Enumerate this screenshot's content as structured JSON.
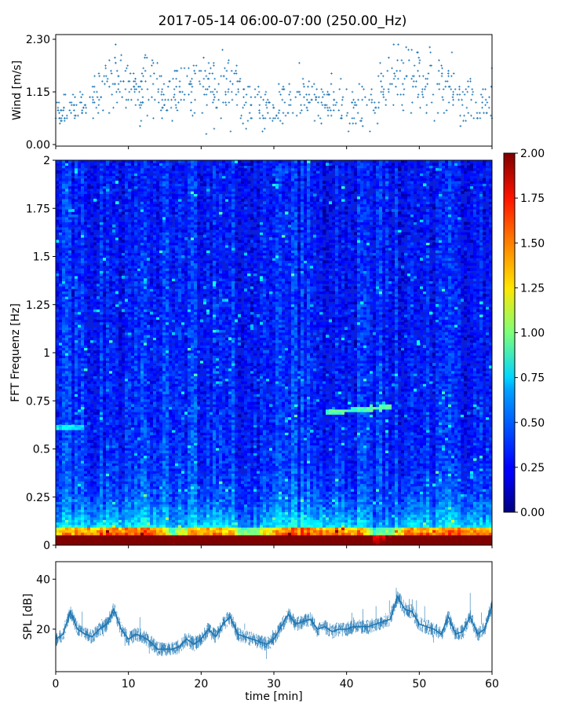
{
  "title": "2017-05-14 06:00-07:00 (250.00_Hz)",
  "chart_data": [
    {
      "name": "wind",
      "type": "scatter",
      "ylabel": "Wind [m/s]",
      "xlim": [
        0,
        60
      ],
      "ylim": [
        0,
        2.3
      ],
      "yticks": [
        "0.00",
        "1.15",
        "2.30"
      ],
      "marker": "plus",
      "color": "#1f77b4",
      "envelope": {
        "x": [
          0,
          2,
          4,
          6,
          8,
          10,
          12,
          14,
          16,
          18,
          20,
          22,
          24,
          26,
          28,
          30,
          32,
          34,
          36,
          38,
          40,
          42,
          44,
          46,
          48,
          50,
          52,
          54,
          56,
          58,
          60
        ],
        "center": [
          0.6,
          0.8,
          0.9,
          1.2,
          1.4,
          1.2,
          1.3,
          1.1,
          1.0,
          1.2,
          1.3,
          1.2,
          1.2,
          0.9,
          0.9,
          0.8,
          1.0,
          1.1,
          0.9,
          1.0,
          0.9,
          0.8,
          1.0,
          1.4,
          1.5,
          1.4,
          1.3,
          1.3,
          1.1,
          0.8,
          1.0
        ],
        "spread": [
          0.3,
          0.3,
          0.3,
          0.5,
          0.6,
          0.5,
          0.6,
          0.5,
          0.4,
          0.5,
          0.6,
          0.5,
          0.6,
          0.4,
          0.4,
          0.4,
          0.5,
          0.5,
          0.4,
          0.4,
          0.4,
          0.4,
          0.4,
          0.6,
          0.7,
          0.6,
          0.6,
          0.5,
          0.5,
          0.4,
          0.4
        ]
      }
    },
    {
      "name": "spectrogram",
      "type": "heatmap",
      "ylabel": "FFT Frequenz [Hz]",
      "xlim": [
        0,
        60
      ],
      "ylim": [
        0,
        2
      ],
      "yticks": [
        "0",
        "0.25",
        "0.5",
        "0.75",
        "1",
        "1.25",
        "1.5",
        "1.75",
        "2"
      ],
      "colormap": "jet",
      "colorbar": {
        "range": [
          0,
          2
        ],
        "ticks": [
          "0.00",
          "0.25",
          "0.50",
          "0.75",
          "1.00",
          "1.25",
          "1.50",
          "1.75",
          "2.00"
        ]
      },
      "low_band_energy_by_minute": {
        "x": [
          0,
          2,
          4,
          6,
          8,
          10,
          12,
          14,
          16,
          18,
          20,
          22,
          24,
          26,
          28,
          30,
          32,
          34,
          36,
          38,
          40,
          42,
          44,
          46,
          48,
          50,
          52,
          54,
          56,
          58,
          60
        ],
        "level": [
          1.5,
          1.6,
          1.6,
          1.8,
          1.9,
          1.8,
          1.9,
          1.9,
          0.9,
          1.4,
          1.8,
          1.7,
          1.6,
          1.0,
          1.2,
          1.6,
          1.8,
          1.9,
          1.8,
          1.9,
          1.8,
          1.7,
          0.8,
          1.0,
          1.8,
          1.9,
          1.7,
          1.8,
          1.9,
          1.8,
          1.8
        ]
      },
      "features": [
        {
          "type": "line",
          "x": [
            37,
            46
          ],
          "y": [
            0.69,
            0.72
          ],
          "value": 0.8
        },
        {
          "type": "line",
          "x": [
            0,
            4
          ],
          "y": [
            0.61,
            0.61
          ],
          "value": 0.6
        }
      ]
    },
    {
      "name": "spl",
      "type": "line",
      "ylabel": "SPL [dB]",
      "xlabel": "time [min]",
      "xlim": [
        0,
        60
      ],
      "ylim": [
        3,
        47
      ],
      "yticks": [
        20,
        40
      ],
      "xticks": [
        0,
        10,
        20,
        30,
        40,
        50,
        60
      ],
      "color": "#1f77b4",
      "x": [
        0,
        1,
        2,
        3,
        4,
        5,
        6,
        7,
        8,
        9,
        10,
        11,
        12,
        13,
        14,
        15,
        16,
        17,
        18,
        19,
        20,
        21,
        22,
        23,
        24,
        25,
        26,
        27,
        28,
        29,
        30,
        31,
        32,
        33,
        34,
        35,
        36,
        37,
        38,
        39,
        40,
        41,
        42,
        43,
        44,
        45,
        46,
        47,
        48,
        49,
        50,
        51,
        52,
        53,
        54,
        55,
        56,
        57,
        58,
        59,
        60
      ],
      "y": [
        16,
        18,
        27,
        20,
        18,
        17,
        20,
        22,
        28,
        20,
        16,
        18,
        17,
        15,
        12,
        12,
        12,
        13,
        16,
        14,
        16,
        20,
        17,
        22,
        25,
        18,
        17,
        16,
        15,
        14,
        16,
        21,
        26,
        22,
        23,
        24,
        20,
        21,
        19,
        20,
        20,
        21,
        21,
        21,
        22,
        23,
        24,
        33,
        28,
        27,
        22,
        21,
        20,
        18,
        25,
        18,
        19,
        25,
        18,
        20,
        30
      ]
    }
  ]
}
